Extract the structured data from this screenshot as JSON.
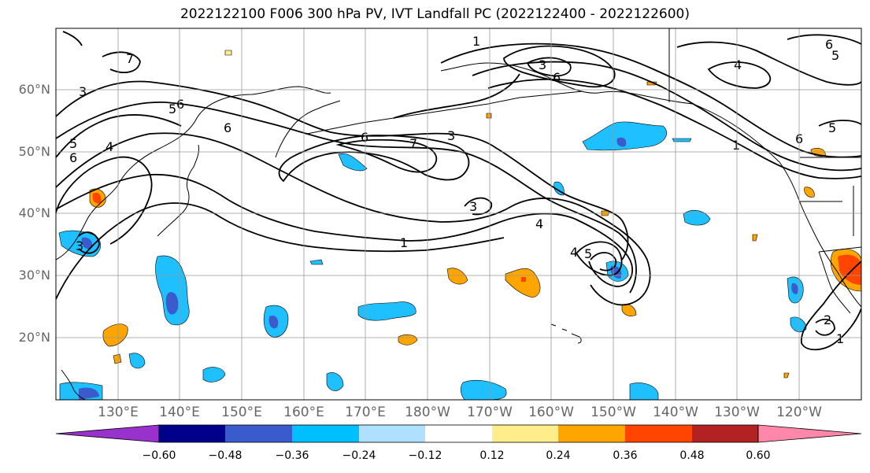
{
  "title": "2022122100 F006 300 hPa PV, IVT Landfall PC (2022122400 - 2022122600)",
  "lat_labels": [
    "60°N",
    "50°N",
    "40°N",
    "30°N",
    "20°N"
  ],
  "lon_labels": [
    "130°E",
    "140°E",
    "150°E",
    "160°E",
    "170°E",
    "180°W",
    "170°W",
    "160°W",
    "150°W",
    "140°W",
    "130°W",
    "120°W"
  ],
  "colorbar": {
    "ticks": [
      "−0.60",
      "−0.48",
      "−0.36",
      "−0.24",
      "−0.12",
      "0.12",
      "0.24",
      "0.36",
      "0.48",
      "0.60"
    ],
    "colors": [
      "#9932cc",
      "#00008b",
      "#3a5bcc",
      "#00bfff",
      "#b0e0ff",
      "#ffffff",
      "#ffec8b",
      "#ffa500",
      "#ff4500",
      "#b22222",
      "#ff88aa"
    ]
  },
  "contour_labels": [
    "1",
    "3",
    "4",
    "5",
    "6",
    "7"
  ],
  "fill_colors": {
    "blue_light": "#a8dcff",
    "blue": "#1ec0ff",
    "blue_dark": "#3a5bcc",
    "purple": "#6a3ddb",
    "yellow": "#ffec8b",
    "orange": "#ffa500",
    "red_orange": "#ff4500"
  }
}
